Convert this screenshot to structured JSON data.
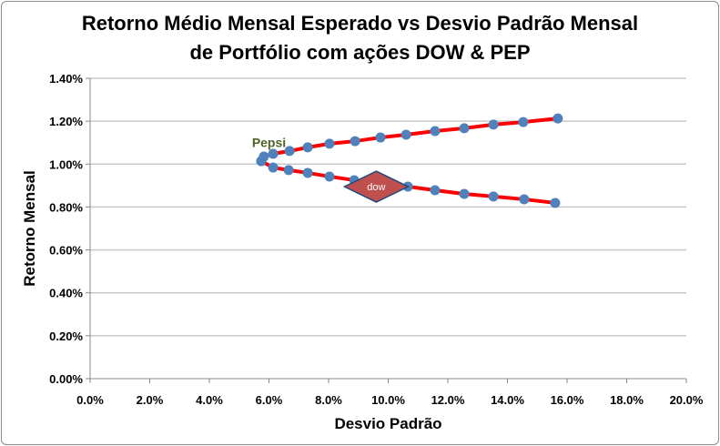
{
  "chart_data": {
    "type": "scatter",
    "title_lines": [
      "Retorno Médio Mensal Esperado vs Desvio Padrão Mensal",
      "de Portfólio com ações DOW & PEP"
    ],
    "xlabel": "Desvio Padrão",
    "ylabel": "Retorno Mensal",
    "xlim": [
      0,
      20
    ],
    "ylim": [
      0,
      1.4
    ],
    "x_ticks": [
      "0.0%",
      "2.0%",
      "4.0%",
      "6.0%",
      "8.0%",
      "10.0%",
      "12.0%",
      "14.0%",
      "16.0%",
      "18.0%",
      "20.0%"
    ],
    "y_ticks": [
      "0.00%",
      "0.20%",
      "0.40%",
      "0.60%",
      "0.80%",
      "1.00%",
      "1.20%",
      "1.40%"
    ],
    "grid": "horizontal",
    "series": [
      {
        "name": "upper frontier",
        "color": "#ff0000",
        "marker_color": "#4f81bd",
        "x": [
          5.74,
          5.83,
          6.14,
          6.69,
          7.3,
          8.03,
          8.89,
          9.74,
          10.6,
          11.57,
          12.55,
          13.53,
          14.53,
          15.69
        ],
        "y": [
          1.014,
          1.035,
          1.048,
          1.061,
          1.078,
          1.095,
          1.107,
          1.124,
          1.137,
          1.154,
          1.167,
          1.184,
          1.196,
          1.213
        ]
      },
      {
        "name": "lower frontier",
        "color": "#ff0000",
        "marker_color": "#4f81bd",
        "x": [
          5.74,
          6.14,
          6.66,
          7.3,
          8.03,
          8.86,
          9.74,
          10.66,
          11.57,
          12.55,
          13.53,
          14.56,
          15.6
        ],
        "y": [
          1.014,
          0.984,
          0.972,
          0.959,
          0.942,
          0.925,
          0.908,
          0.895,
          0.878,
          0.861,
          0.849,
          0.836,
          0.819
        ]
      }
    ],
    "annotations": [
      {
        "text": "Pepsi",
        "x": 6.0,
        "y": 1.08,
        "color": "#4f6228"
      },
      {
        "text": "dow",
        "x": 9.6,
        "y": 0.895,
        "shape": "diamond",
        "fill": "#c0504d"
      }
    ]
  }
}
